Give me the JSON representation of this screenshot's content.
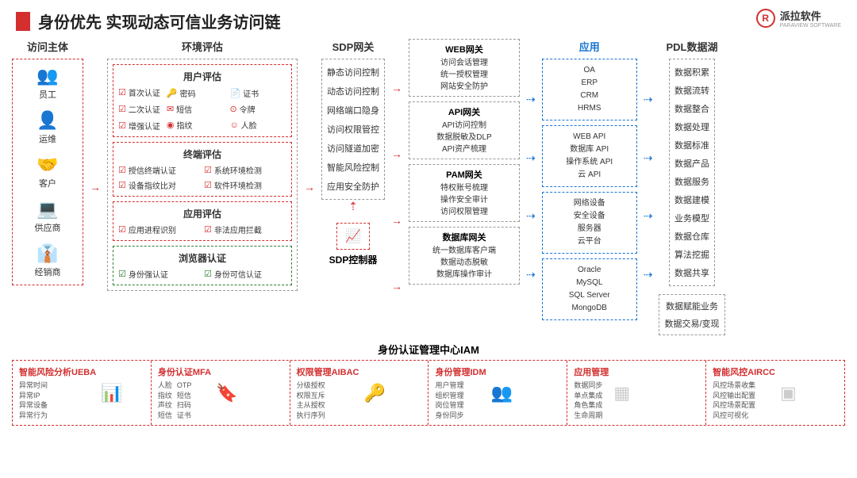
{
  "title": "身份优先 实现动态可信业务访问链",
  "logo": {
    "name": "派拉软件",
    "sub": "PARAVIEW SOFTWARE",
    "mark": "R"
  },
  "subjects": {
    "title": "访问主体",
    "items": [
      {
        "label": "员工",
        "icon": "👥"
      },
      {
        "label": "运维",
        "icon": "👤"
      },
      {
        "label": "客户",
        "icon": "🤝"
      },
      {
        "label": "供应商",
        "icon": "💻"
      },
      {
        "label": "经销商",
        "icon": "👔",
        "green": true
      }
    ]
  },
  "env": {
    "title": "环境评估",
    "user": {
      "title": "用户评估",
      "left": [
        "首次认证",
        "二次认证",
        "增强认证"
      ],
      "right": [
        {
          "icon": "🔑",
          "t": "密码"
        },
        {
          "icon": "📄",
          "t": "证书"
        },
        {
          "icon": "✉",
          "t": "短信"
        },
        {
          "icon": "⊙",
          "t": "令牌"
        },
        {
          "icon": "◉",
          "t": "指纹"
        },
        {
          "icon": "☺",
          "t": "人脸"
        }
      ]
    },
    "terminal": {
      "title": "终端评估",
      "items": [
        "授信终端认证",
        "系统环境检测",
        "设备指纹比对",
        "软件环境检测"
      ]
    },
    "app": {
      "title": "应用评估",
      "items": [
        "应用进程识别",
        "非法应用拦截"
      ]
    },
    "browser": {
      "title": "浏览器认证",
      "items": [
        "身份强认证",
        "身份可信认证"
      ]
    }
  },
  "sdp": {
    "title": "SDP网关",
    "items": [
      "静态访问控制",
      "动态访问控制",
      "网络端口隐身",
      "访问权限管控",
      "访问隧道加密",
      "智能风险控制",
      "应用安全防护"
    ],
    "controller": "SDP控制器"
  },
  "gateways": [
    {
      "title": "WEB网关",
      "items": [
        "访问会话管理",
        "统一授权管理",
        "网站安全防护"
      ]
    },
    {
      "title": "API网关",
      "items": [
        "API访问控制",
        "数据脱敏及DLP",
        "API资产梳理"
      ]
    },
    {
      "title": "PAM网关",
      "items": [
        "特权账号梳理",
        "操作安全审计",
        "访问权限管理"
      ]
    },
    {
      "title": "数据库网关",
      "items": [
        "统一数据库客户端",
        "数据动态脱敏",
        "数据库操作审计"
      ]
    }
  ],
  "apps": {
    "title": "应用",
    "groups": [
      [
        "OA",
        "ERP",
        "CRM",
        "HRMS"
      ],
      [
        "WEB API",
        "数据库 API",
        "操作系统 API",
        "云 API"
      ],
      [
        "网络设备",
        "安全设备",
        "服务器",
        "云平台"
      ],
      [
        "Oracle",
        "MySQL",
        "SQL Server",
        "MongoDB"
      ]
    ]
  },
  "pdl": {
    "title": "PDL数据湖",
    "items": [
      "数据积累",
      "数据流转",
      "数据整合",
      "数据处理",
      "数据标准",
      "数据产品",
      "数据服务",
      "数据建模",
      "业务模型",
      "数据仓库",
      "算法挖掘",
      "数据共享"
    ],
    "extra": [
      "数据赋能业务",
      "数据交易/变现"
    ]
  },
  "iam": {
    "title": "身份认证管理中心IAM",
    "boxes": [
      {
        "title": "智能风险分析UEBA",
        "cols": [
          [
            "异常时间",
            "异常IP",
            "异常设备",
            "异常行为"
          ]
        ],
        "icon": "📊"
      },
      {
        "title": "身份认证MFA",
        "cols": [
          [
            "人脸",
            "指纹",
            "声纹",
            "短信"
          ],
          [
            "OTP",
            "短信",
            "扫码",
            "证书"
          ]
        ],
        "icon": "🔖"
      },
      {
        "title": "权限管理AIBAC",
        "cols": [
          [
            "分级授权",
            "权限互斥",
            "主从授权",
            "执行序列"
          ]
        ],
        "icon": "🔑"
      },
      {
        "title": "身份管理IDM",
        "cols": [
          [
            "用户管理",
            "组织管理",
            "岗位管理",
            "身份同步"
          ]
        ],
        "icon": "👥"
      },
      {
        "title": "应用管理",
        "cols": [
          [
            "数据同步",
            "单点集成",
            "角色集成",
            "生命周期"
          ]
        ],
        "icon": "▦"
      },
      {
        "title": "智能风控AIRCC",
        "cols": [
          [
            "风控场景收集",
            "风控输出配置",
            "风控场景配置",
            "风控可视化"
          ]
        ],
        "icon": "▣"
      }
    ]
  },
  "colors": {
    "red": "#d32f2f",
    "blue": "#1976d2",
    "green": "#2e7d32",
    "gray": "#999"
  }
}
